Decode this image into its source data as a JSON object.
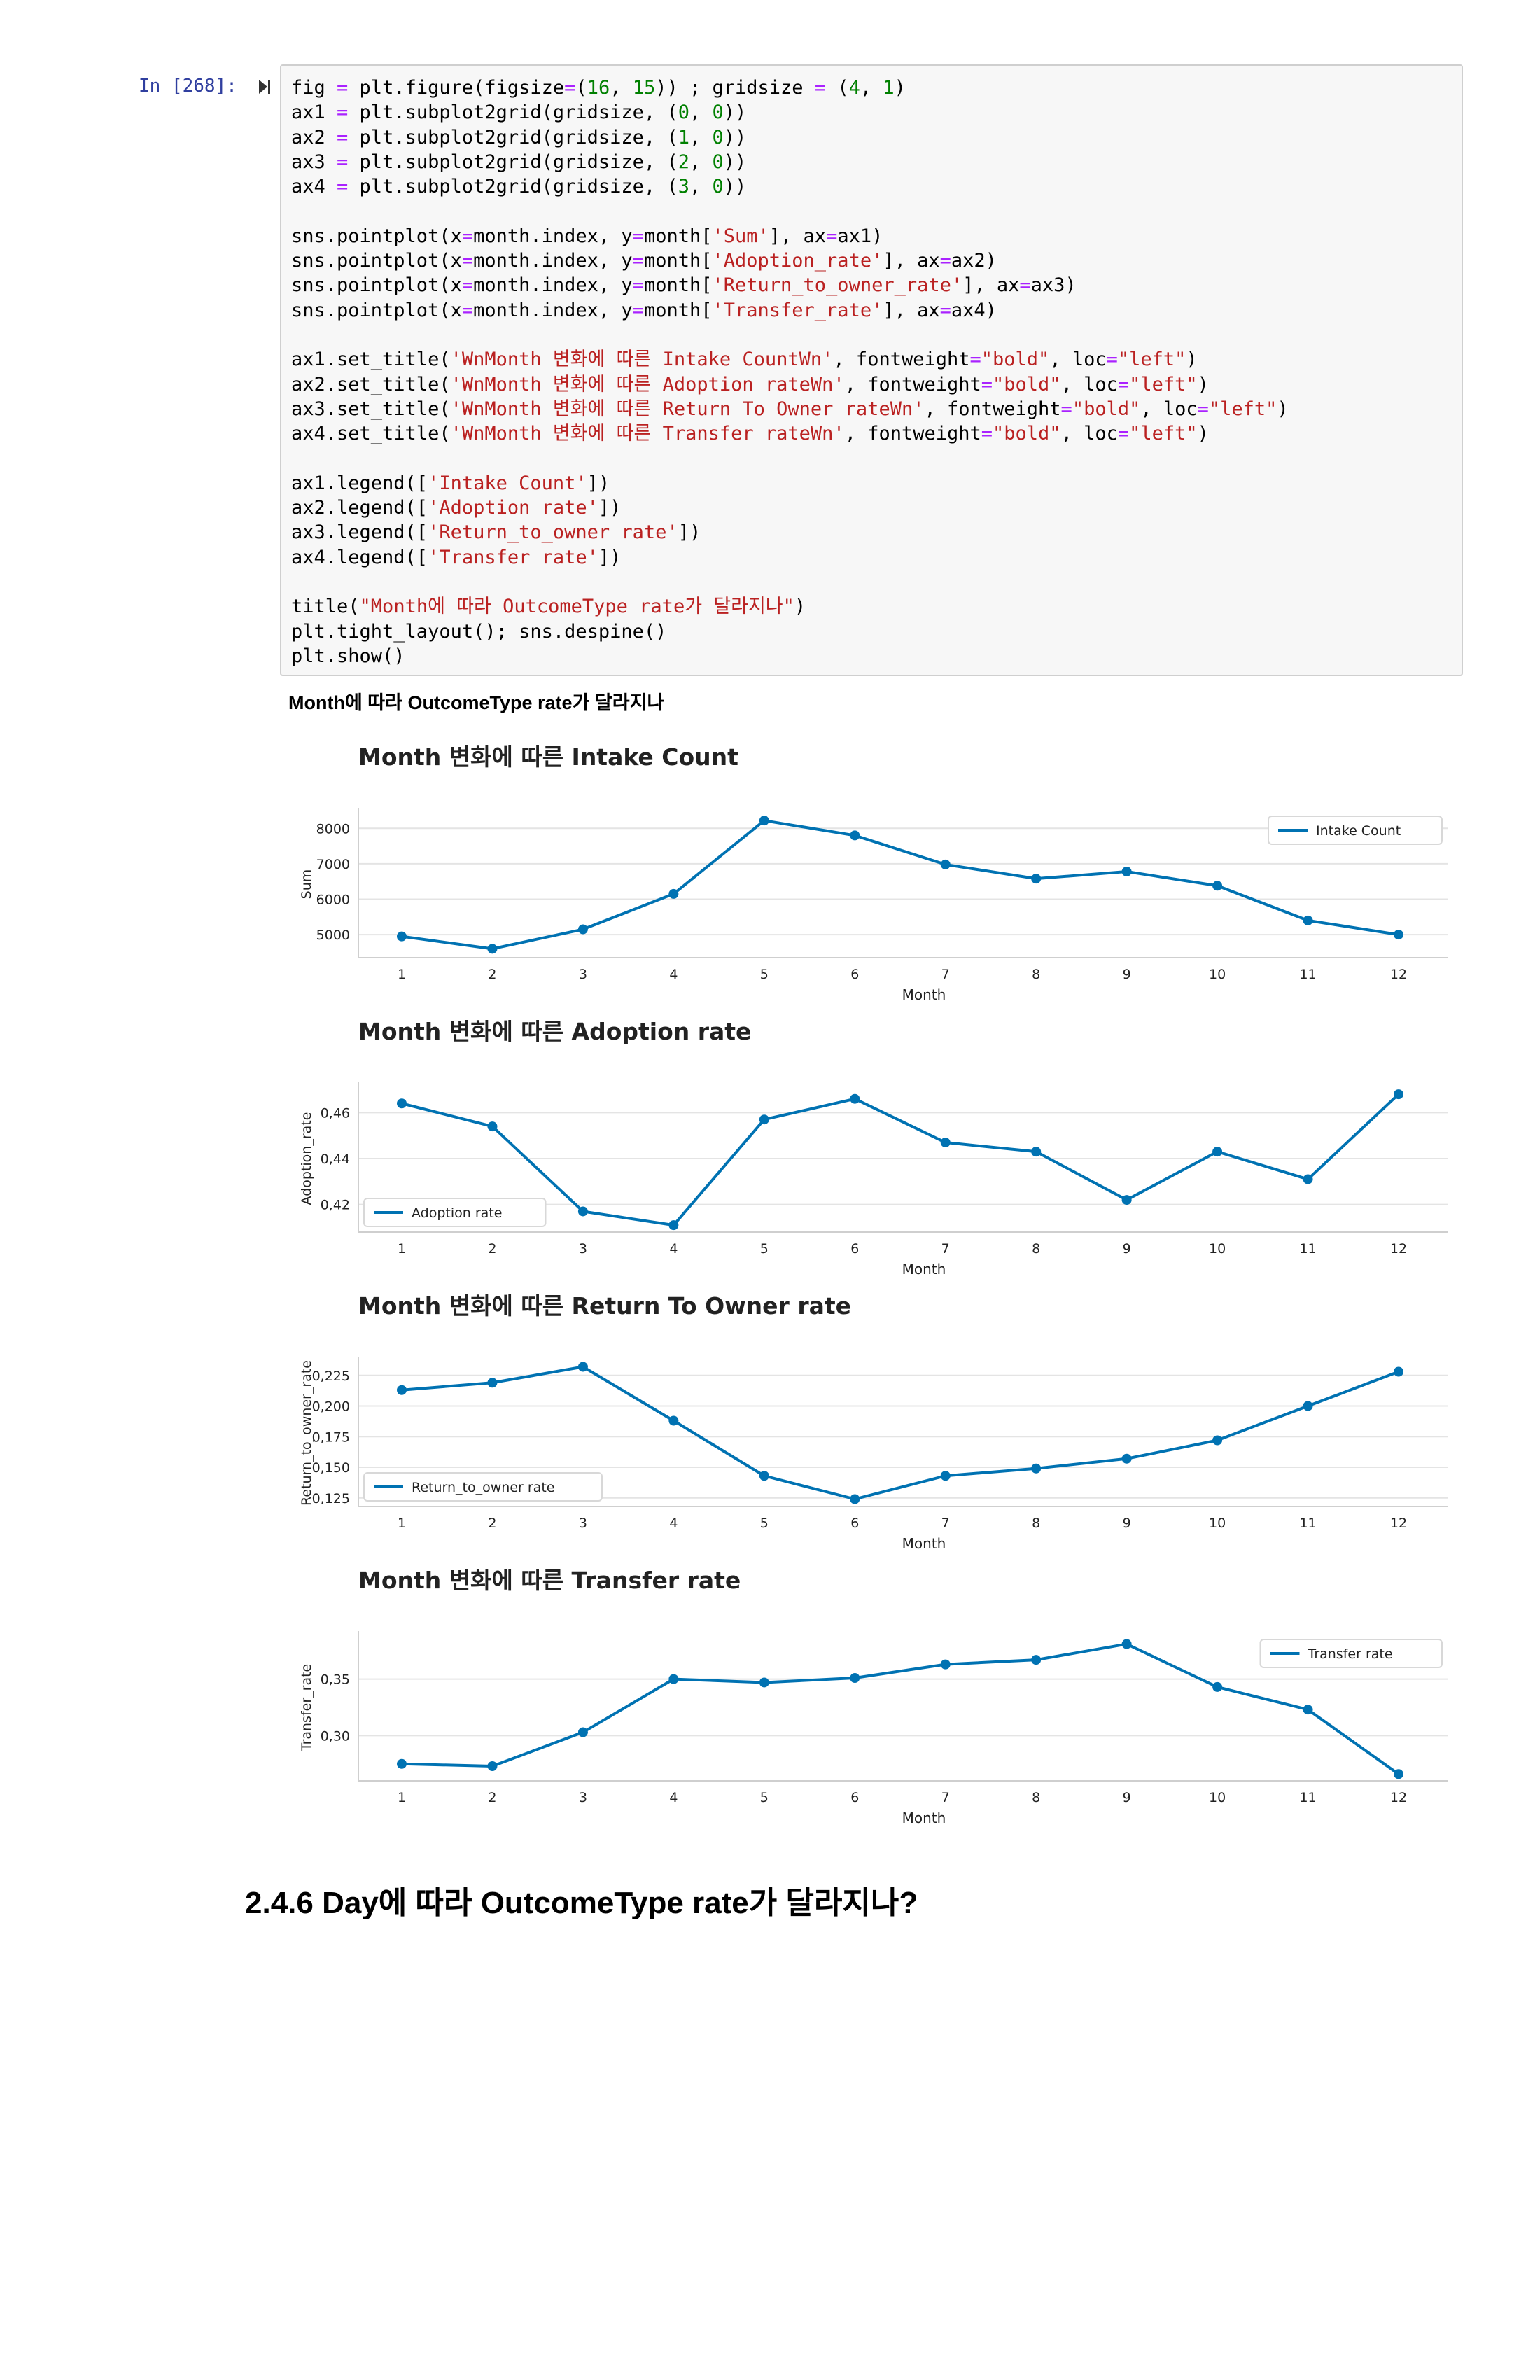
{
  "cell": {
    "prompt": "In [268]:",
    "code_lines": [
      "fig = plt.figure(figsize=(16, 15)) ; gridsize = (4, 1)",
      "ax1 = plt.subplot2grid(gridsize, (0, 0))",
      "ax2 = plt.subplot2grid(gridsize, (1, 0))",
      "ax3 = plt.subplot2grid(gridsize, (2, 0))",
      "ax4 = plt.subplot2grid(gridsize, (3, 0))",
      "",
      "sns.pointplot(x=month.index, y=month['Sum'], ax=ax1)",
      "sns.pointplot(x=month.index, y=month['Adoption_rate'], ax=ax2)",
      "sns.pointplot(x=month.index, y=month['Return_to_owner_rate'], ax=ax3)",
      "sns.pointplot(x=month.index, y=month['Transfer_rate'], ax=ax4)",
      "",
      "ax1.set_title('WnMonth 변화에 따른 Intake CountWn', fontweight=\"bold\", loc=\"left\")",
      "ax2.set_title('WnMonth 변화에 따른 Adoption rateWn', fontweight=\"bold\", loc=\"left\")",
      "ax3.set_title('WnMonth 변화에 따른 Return To Owner rateWn', fontweight=\"bold\", loc=\"left\")",
      "ax4.set_title('WnMonth 변화에 따른 Transfer rateWn', fontweight=\"bold\", loc=\"left\")",
      "",
      "ax1.legend(['Intake Count'])",
      "ax2.legend(['Adoption rate'])",
      "ax3.legend(['Return_to_owner rate'])",
      "ax4.legend(['Transfer rate'])",
      "",
      "title(\"Month에 따라 OutcomeType rate가 달라지나\")",
      "plt.tight_layout(); sns.despine()",
      "plt.show()"
    ]
  },
  "output": {
    "title": "Month에 따라 OutcomeType rate가 달라지나"
  },
  "colors": {
    "line": "#0072b2",
    "grid": "#e4e4e4",
    "string": "#ba2121",
    "number": "#008000",
    "operator": "#aa22ff",
    "prompt": "#303f9f"
  },
  "chart_data": [
    {
      "type": "line",
      "title": "Month 변화에 따른 Intake Count",
      "xlabel": "Month",
      "ylabel": "Sum",
      "categories": [
        "1",
        "2",
        "3",
        "4",
        "5",
        "6",
        "7",
        "8",
        "9",
        "10",
        "11",
        "12"
      ],
      "series": [
        {
          "name": "Intake Count",
          "values": [
            4950,
            4600,
            5150,
            6150,
            8220,
            7800,
            6980,
            6580,
            6780,
            6380,
            5400,
            5000
          ]
        }
      ],
      "ylim": [
        4350,
        8500
      ],
      "yticks": [
        5000,
        6000,
        7000,
        8000
      ],
      "ytick_labels": [
        "5000",
        "6000",
        "7000",
        "8000"
      ],
      "legend": "upper-right",
      "grid": true
    },
    {
      "type": "line",
      "title": "Month 변화에 따른 Adoption rate",
      "xlabel": "Month",
      "ylabel": "Adoption_rate",
      "categories": [
        "1",
        "2",
        "3",
        "4",
        "5",
        "6",
        "7",
        "8",
        "9",
        "10",
        "11",
        "12"
      ],
      "series": [
        {
          "name": "Adoption rate",
          "values": [
            0.464,
            0.454,
            0.417,
            0.411,
            0.457,
            0.466,
            0.447,
            0.443,
            0.422,
            0.443,
            0.431,
            0.468
          ]
        }
      ],
      "ylim": [
        0.408,
        0.472
      ],
      "yticks": [
        0.42,
        0.44,
        0.46
      ],
      "ytick_labels": [
        "0,42",
        "0,44",
        "0,46"
      ],
      "legend": "lower-left",
      "grid": true
    },
    {
      "type": "line",
      "title": "Month 변화에 따른 Return To Owner rate",
      "xlabel": "Month",
      "ylabel": "Return_to_owner_rate",
      "categories": [
        "1",
        "2",
        "3",
        "4",
        "5",
        "6",
        "7",
        "8",
        "9",
        "10",
        "11",
        "12"
      ],
      "series": [
        {
          "name": "Return_to_owner rate",
          "values": [
            0.213,
            0.219,
            0.232,
            0.188,
            0.143,
            0.124,
            0.143,
            0.149,
            0.157,
            0.172,
            0.2,
            0.228
          ]
        }
      ],
      "ylim": [
        0.118,
        0.238
      ],
      "yticks": [
        0.125,
        0.15,
        0.175,
        0.2,
        0.225
      ],
      "ytick_labels": [
        "0,125",
        "0,150",
        "0,175",
        "0,200",
        "0,225"
      ],
      "legend": "lower-left",
      "grid": true
    },
    {
      "type": "line",
      "title": "Month 변화에 따른 Transfer rate",
      "xlabel": "Month",
      "ylabel": "Transfer_rate",
      "categories": [
        "1",
        "2",
        "3",
        "4",
        "5",
        "6",
        "7",
        "8",
        "9",
        "10",
        "11",
        "12"
      ],
      "series": [
        {
          "name": "Transfer rate",
          "values": [
            0.275,
            0.273,
            0.303,
            0.35,
            0.347,
            0.351,
            0.363,
            0.367,
            0.381,
            0.343,
            0.323,
            0.266
          ]
        }
      ],
      "ylim": [
        0.26,
        0.39
      ],
      "yticks": [
        0.3,
        0.35
      ],
      "ytick_labels": [
        "0,30",
        "0,35"
      ],
      "legend": "upper-right",
      "grid": true
    }
  ],
  "heading": {
    "text": "2.4.6 Day에 따라 OutcomeType rate가 달라지나?"
  }
}
